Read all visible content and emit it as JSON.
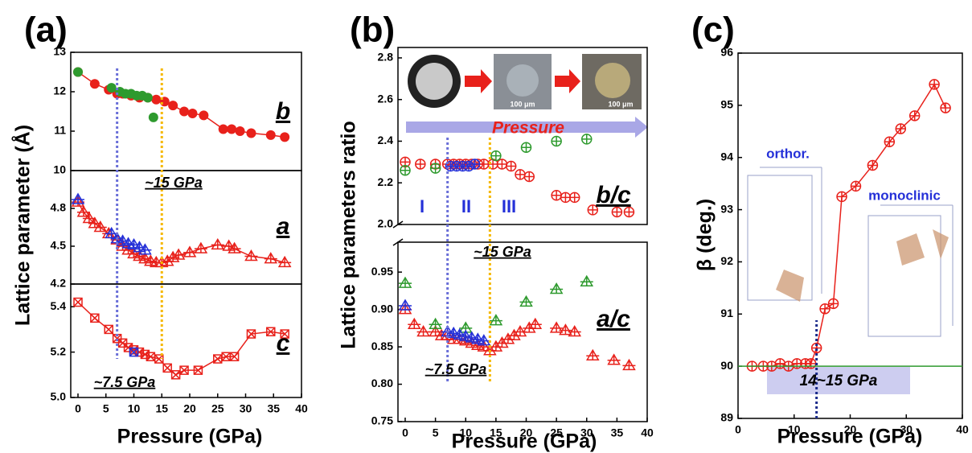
{
  "chart_data": [
    {
      "type": "scatter",
      "label": "(a)",
      "ylabel": "Lattice parameter (Å)",
      "xlabel": "Pressure (GPa)",
      "xlim": [
        0,
        40
      ],
      "xticks": [
        0,
        5,
        10,
        15,
        20,
        25,
        30,
        35,
        40
      ],
      "reference_lines": [
        {
          "x": 7,
          "color": "#6a6fd8"
        },
        {
          "x": 15,
          "color": "#f5b800"
        }
      ],
      "annotations": [
        "b",
        "a",
        "c",
        "~15 GPa",
        "~7.5 GPa"
      ],
      "panels": [
        {
          "ylim": [
            10,
            13
          ],
          "yticks": [
            10,
            11,
            12,
            13
          ],
          "series": [
            {
              "color": "#e8211b",
              "marker": "circle",
              "line": true,
              "x": [
                0,
                3,
                5.5,
                7,
                8,
                9.5,
                11,
                12.5,
                14,
                15.5,
                17,
                19,
                20.5,
                22.5,
                26,
                27.5,
                29,
                31,
                34.5,
                37
              ],
              "values": [
                12.5,
                12.2,
                12.05,
                11.95,
                11.95,
                11.9,
                11.85,
                11.85,
                11.8,
                11.75,
                11.65,
                11.5,
                11.45,
                11.4,
                11.05,
                11.05,
                11.0,
                10.95,
                10.9,
                10.85
              ]
            },
            {
              "color": "#2e9a2e",
              "marker": "circle",
              "line": false,
              "x": [
                0,
                6,
                7.5,
                8.5,
                9.5,
                10.5,
                11.5,
                12.5,
                13.5
              ],
              "values": [
                12.5,
                12.1,
                12.0,
                11.95,
                11.95,
                11.9,
                11.9,
                11.85,
                11.35
              ]
            }
          ]
        },
        {
          "ylim": [
            4.2,
            5.1
          ],
          "yticks": [
            4.2,
            4.5,
            4.8
          ],
          "series": [
            {
              "color": "#e8211b",
              "marker": "triangle-plus",
              "line": true,
              "x": [
                0,
                1,
                2,
                3,
                4,
                5.5,
                7,
                8,
                9,
                10,
                11,
                12,
                13,
                14,
                15,
                16,
                17,
                18,
                20,
                22,
                25,
                27,
                28,
                31,
                34.5,
                37
              ],
              "values": [
                4.85,
                4.77,
                4.72,
                4.68,
                4.65,
                4.6,
                4.55,
                4.5,
                4.47,
                4.44,
                4.42,
                4.4,
                4.38,
                4.37,
                4.37,
                4.38,
                4.41,
                4.43,
                4.45,
                4.48,
                4.51,
                4.5,
                4.48,
                4.42,
                4.4,
                4.37
              ]
            },
            {
              "color": "#2430d8",
              "marker": "triangle-plus",
              "line": false,
              "x": [
                0,
                6,
                7,
                8,
                9,
                10,
                11,
                12
              ],
              "values": [
                4.87,
                4.6,
                4.56,
                4.54,
                4.52,
                4.51,
                4.49,
                4.47
              ]
            }
          ]
        },
        {
          "ylim": [
            5.0,
            5.5
          ],
          "yticks": [
            {
              "value": 5.0,
              "label": "5.0"
            },
            5.2,
            5.4
          ],
          "series": [
            {
              "color": "#e8211b",
              "marker": "square-x",
              "line": true,
              "x": [
                0,
                3,
                5.5,
                7,
                8,
                9,
                10,
                11,
                12,
                13,
                14.5,
                16,
                17.5,
                19,
                21.5,
                25,
                26.5,
                28,
                31,
                34.5,
                37
              ],
              "values": [
                5.42,
                5.35,
                5.3,
                5.26,
                5.24,
                5.22,
                5.21,
                5.2,
                5.19,
                5.18,
                5.17,
                5.13,
                5.1,
                5.12,
                5.12,
                5.17,
                5.18,
                5.18,
                5.28,
                5.29,
                5.28
              ]
            },
            {
              "color": "#2430d8",
              "marker": "square-x",
              "line": false,
              "x": [
                10
              ],
              "values": [
                5.2
              ]
            }
          ]
        }
      ]
    },
    {
      "type": "scatter",
      "label": "(b)",
      "ylabel": "Lattice parameters ratio",
      "xlabel": "Pressure (GPa)",
      "xlim": [
        0,
        40
      ],
      "xticks": [
        0,
        5,
        10,
        15,
        20,
        25,
        30,
        35,
        40
      ],
      "reference_lines": [
        {
          "x": 7,
          "color": "#6a6fd8"
        },
        {
          "x": 14,
          "color": "#f5b800"
        }
      ],
      "annotations": [
        "b/c",
        "a/c",
        "~15 GPa",
        "~7.5 GPa",
        "I",
        "II",
        "III",
        "Pressure",
        "100 μm",
        "100 μm"
      ],
      "panels": [
        {
          "ylim": [
            2.0,
            2.85
          ],
          "yticks": [
            {
              "value": 2.0,
              "label": "2.0"
            },
            2.2,
            2.4,
            2.6,
            2.8
          ],
          "series": [
            {
              "color": "#e8211b",
              "marker": "circle-plus",
              "line": false,
              "x": [
                0,
                2.5,
                5,
                7,
                8,
                9,
                10,
                11,
                12,
                13,
                14.5,
                16,
                17.5,
                19,
                20.5,
                25,
                26.5,
                28,
                31,
                35,
                37
              ],
              "values": [
                2.3,
                2.29,
                2.29,
                2.29,
                2.29,
                2.29,
                2.29,
                2.29,
                2.29,
                2.29,
                2.29,
                2.29,
                2.28,
                2.24,
                2.23,
                2.14,
                2.13,
                2.13,
                2.07,
                2.06,
                2.06
              ]
            },
            {
              "color": "#2e9a2e",
              "marker": "circle-plus",
              "line": false,
              "x": [
                0,
                5,
                15,
                20,
                25,
                30
              ],
              "values": [
                2.26,
                2.27,
                2.33,
                2.37,
                2.4,
                2.41
              ]
            },
            {
              "color": "#2430d8",
              "marker": "circle-plus",
              "line": false,
              "x": [
                7.5,
                8.5,
                9.5,
                10.5,
                11.5
              ],
              "values": [
                2.28,
                2.28,
                2.28,
                2.28,
                2.29
              ]
            }
          ]
        },
        {
          "ylim": [
            0.75,
            0.99
          ],
          "yticks": [
            0.75,
            {
              "value": 0.8,
              "label": "0.80"
            },
            0.85,
            {
              "value": 0.9,
              "label": "0.90"
            },
            0.95
          ],
          "series": [
            {
              "color": "#e8211b",
              "marker": "triangle-plus",
              "line": false,
              "x": [
                0,
                1.5,
                3,
                5,
                6,
                7,
                8,
                9,
                10,
                11,
                12,
                13,
                14,
                15,
                16,
                17,
                18,
                19,
                20.5,
                21.5,
                25,
                26.5,
                28,
                31,
                34.5,
                37
              ],
              "values": [
                0.9,
                0.88,
                0.87,
                0.87,
                0.865,
                0.865,
                0.86,
                0.86,
                0.858,
                0.855,
                0.852,
                0.85,
                0.845,
                0.85,
                0.855,
                0.86,
                0.865,
                0.87,
                0.875,
                0.88,
                0.875,
                0.872,
                0.87,
                0.838,
                0.832,
                0.825
              ]
            },
            {
              "color": "#2e9a2e",
              "marker": "triangle-plus",
              "line": false,
              "x": [
                0,
                5,
                10,
                15,
                20,
                25,
                30
              ],
              "values": [
                0.935,
                0.88,
                0.875,
                0.885,
                0.91,
                0.927,
                0.937
              ]
            },
            {
              "color": "#2430d8",
              "marker": "triangle-plus",
              "line": false,
              "x": [
                0,
                7,
                8,
                9,
                10,
                11,
                12,
                13
              ],
              "values": [
                0.905,
                0.87,
                0.868,
                0.866,
                0.864,
                0.862,
                0.86,
                0.858
              ]
            }
          ]
        }
      ]
    },
    {
      "type": "scatter",
      "label": "(c)",
      "ylabel": "β (deg.)",
      "xlabel": "Pressure (GPa)",
      "xlim": [
        0,
        40
      ],
      "xticks": [
        0,
        10,
        20,
        30,
        40
      ],
      "reference_lines": [
        {
          "x": 14,
          "color": "#1a2a8a"
        },
        {
          "y": 90,
          "color": "#2e9a2e"
        }
      ],
      "annotations": [
        "orthor.",
        "monoclinic",
        "14~15 GPa"
      ],
      "panels": [
        {
          "ylim": [
            89,
            96
          ],
          "yticks": [
            89,
            90,
            91,
            92,
            93,
            94,
            95,
            96
          ],
          "series": [
            {
              "color": "#e8211b",
              "marker": "circle-plus",
              "line": true,
              "x": [
                2.5,
                4.5,
                6,
                7.5,
                9,
                10.5,
                12,
                13,
                14,
                15.5,
                17,
                18.5,
                21,
                24,
                27,
                29,
                31.5,
                35,
                37
              ],
              "values": [
                90,
                90,
                90,
                90.05,
                90,
                90.05,
                90.05,
                90.05,
                90.35,
                91.1,
                91.2,
                93.25,
                93.45,
                93.85,
                94.3,
                94.55,
                94.8,
                95.4,
                94.95
              ]
            }
          ]
        }
      ]
    }
  ]
}
